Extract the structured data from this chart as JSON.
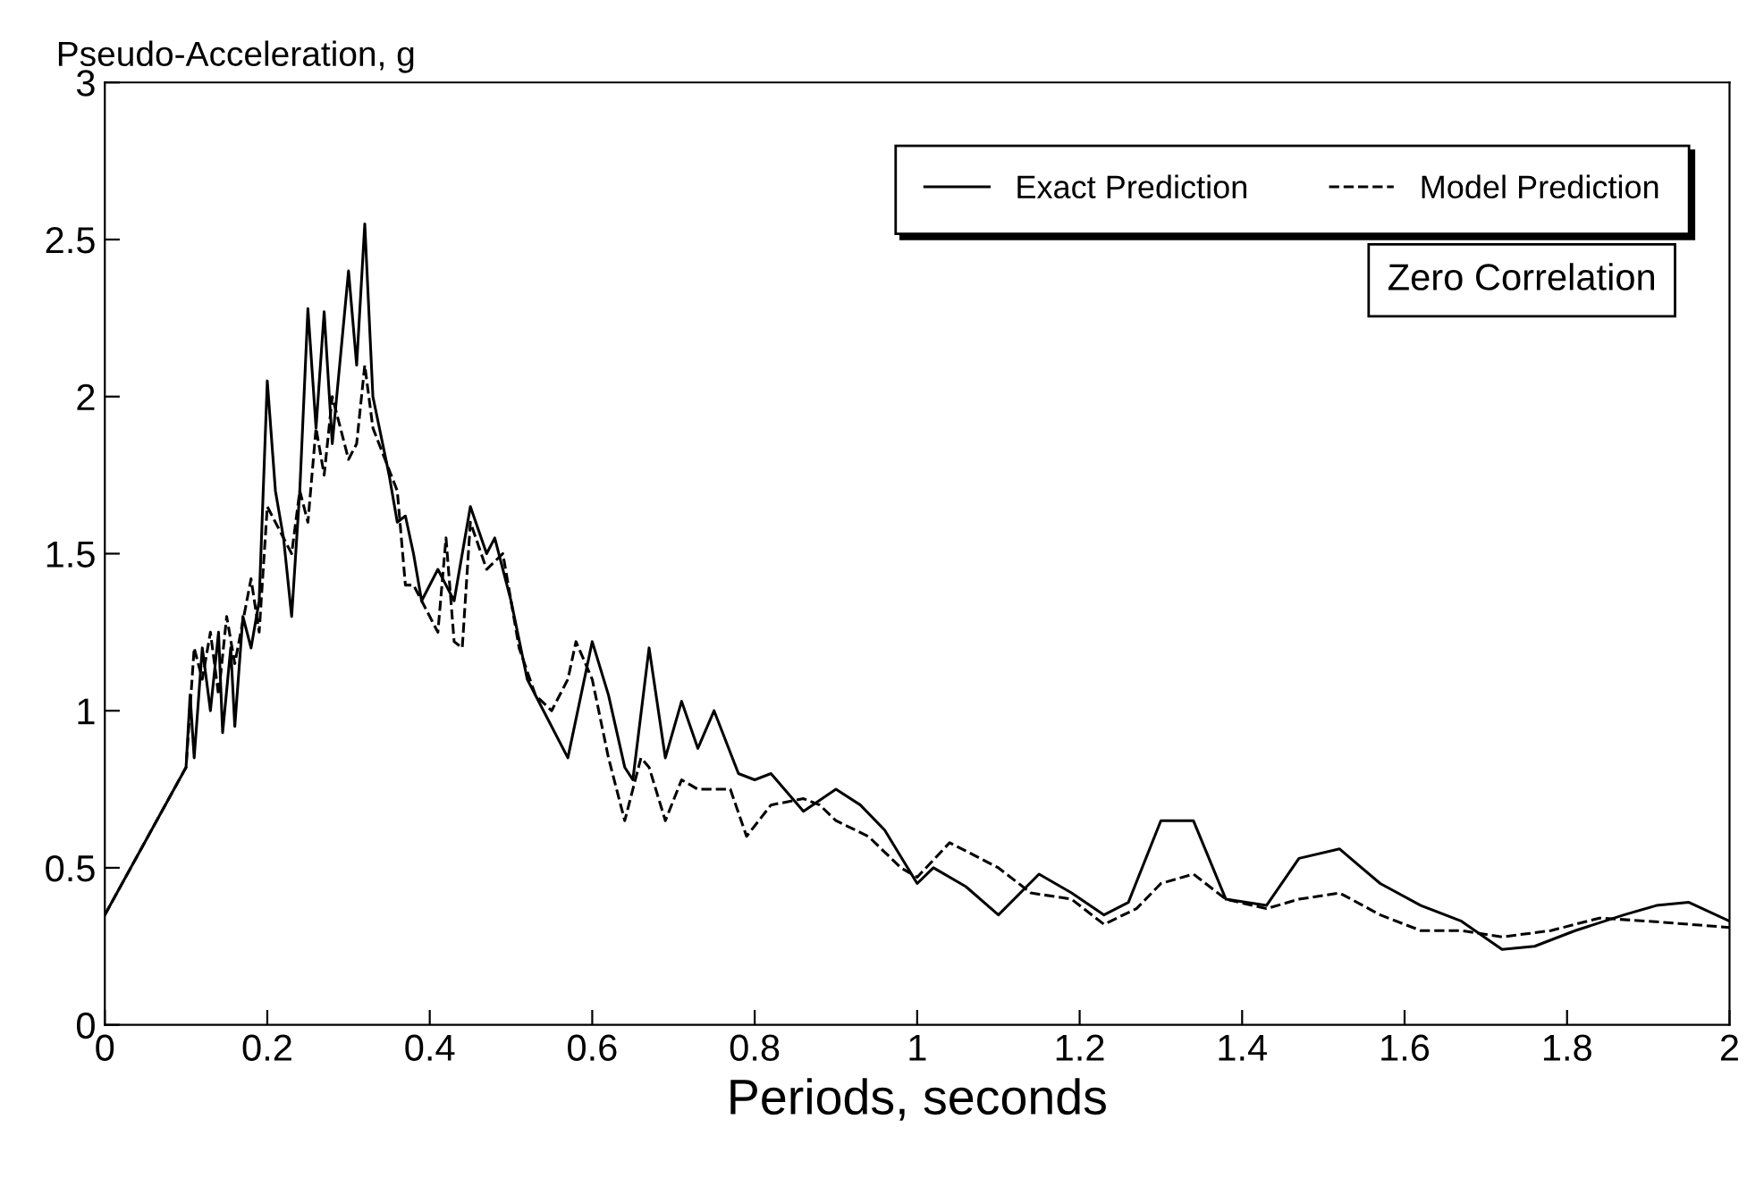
{
  "chart_data": {
    "type": "line",
    "ylabel": "Pseudo-Acceleration, g",
    "xlabel": "Periods, seconds",
    "annotations": [
      "Zero Correlation"
    ],
    "xlim": [
      0,
      2
    ],
    "xticks": [
      0,
      0.2,
      0.4,
      0.6,
      0.8,
      1,
      1.2,
      1.4,
      1.6,
      1.8,
      2
    ],
    "ylim": [
      0,
      3
    ],
    "yticks": [
      0,
      0.5,
      1,
      1.5,
      2,
      2.5,
      3
    ],
    "grid": false,
    "legend": "top right",
    "marker": "none",
    "series": [
      {
        "name": "Exact Prediction",
        "color": "#000000",
        "line_style": "solid",
        "x": [
          0,
          0.1,
          0.105,
          0.11,
          0.12,
          0.13,
          0.14,
          0.145,
          0.155,
          0.16,
          0.17,
          0.18,
          0.19,
          0.2,
          0.21,
          0.22,
          0.23,
          0.24,
          0.25,
          0.26,
          0.27,
          0.28,
          0.3,
          0.31,
          0.32,
          0.33,
          0.35,
          0.36,
          0.37,
          0.38,
          0.39,
          0.41,
          0.42,
          0.43,
          0.45,
          0.47,
          0.48,
          0.5,
          0.52,
          0.54,
          0.57,
          0.6,
          0.62,
          0.64,
          0.65,
          0.67,
          0.69,
          0.71,
          0.73,
          0.75,
          0.78,
          0.8,
          0.82,
          0.86,
          0.9,
          0.93,
          0.96,
          1.0,
          1.02,
          1.06,
          1.1,
          1.15,
          1.19,
          1.23,
          1.26,
          1.3,
          1.34,
          1.38,
          1.43,
          1.47,
          1.52,
          1.57,
          1.62,
          1.67,
          1.72,
          1.76,
          1.81,
          1.87,
          1.91,
          1.95,
          2.0
        ],
        "values": [
          0.35,
          0.82,
          1.05,
          0.85,
          1.2,
          1.0,
          1.25,
          0.93,
          1.2,
          0.95,
          1.3,
          1.2,
          1.35,
          2.05,
          1.7,
          1.55,
          1.3,
          1.7,
          2.28,
          1.9,
          2.27,
          1.85,
          2.4,
          2.1,
          2.55,
          2.0,
          1.75,
          1.6,
          1.62,
          1.5,
          1.35,
          1.45,
          1.4,
          1.35,
          1.65,
          1.5,
          1.55,
          1.35,
          1.1,
          1.0,
          0.85,
          1.22,
          1.05,
          0.82,
          0.78,
          1.2,
          0.85,
          1.03,
          0.88,
          1.0,
          0.8,
          0.78,
          0.8,
          0.68,
          0.75,
          0.7,
          0.62,
          0.45,
          0.5,
          0.44,
          0.35,
          0.48,
          0.42,
          0.35,
          0.39,
          0.65,
          0.65,
          0.4,
          0.38,
          0.53,
          0.56,
          0.45,
          0.38,
          0.33,
          0.24,
          0.25,
          0.3,
          0.35,
          0.38,
          0.39,
          0.33
        ]
      },
      {
        "name": "Model Prediction",
        "color": "#000000",
        "line_style": "dashed",
        "x": [
          0,
          0.1,
          0.11,
          0.12,
          0.13,
          0.14,
          0.15,
          0.16,
          0.18,
          0.19,
          0.2,
          0.22,
          0.23,
          0.24,
          0.25,
          0.26,
          0.27,
          0.28,
          0.3,
          0.31,
          0.32,
          0.33,
          0.36,
          0.37,
          0.38,
          0.39,
          0.41,
          0.42,
          0.43,
          0.44,
          0.45,
          0.47,
          0.49,
          0.51,
          0.53,
          0.55,
          0.57,
          0.58,
          0.6,
          0.62,
          0.64,
          0.66,
          0.67,
          0.69,
          0.71,
          0.73,
          0.77,
          0.79,
          0.82,
          0.86,
          0.88,
          0.9,
          0.94,
          0.98,
          1.0,
          1.04,
          1.1,
          1.14,
          1.19,
          1.23,
          1.27,
          1.3,
          1.34,
          1.38,
          1.43,
          1.47,
          1.52,
          1.57,
          1.62,
          1.67,
          1.72,
          1.78,
          1.84,
          1.9,
          2.0
        ],
        "values": [
          0.35,
          0.82,
          1.2,
          1.1,
          1.25,
          1.05,
          1.3,
          1.15,
          1.42,
          1.25,
          1.65,
          1.55,
          1.5,
          1.7,
          1.6,
          1.9,
          1.75,
          2.0,
          1.8,
          1.85,
          2.1,
          1.9,
          1.7,
          1.4,
          1.4,
          1.35,
          1.25,
          1.55,
          1.22,
          1.2,
          1.6,
          1.45,
          1.5,
          1.2,
          1.05,
          1.0,
          1.1,
          1.22,
          1.1,
          0.85,
          0.65,
          0.85,
          0.82,
          0.65,
          0.78,
          0.75,
          0.75,
          0.6,
          0.7,
          0.72,
          0.7,
          0.65,
          0.6,
          0.5,
          0.47,
          0.58,
          0.5,
          0.42,
          0.4,
          0.32,
          0.37,
          0.45,
          0.48,
          0.4,
          0.37,
          0.4,
          0.42,
          0.35,
          0.3,
          0.3,
          0.28,
          0.3,
          0.34,
          0.33,
          0.31
        ]
      }
    ]
  }
}
